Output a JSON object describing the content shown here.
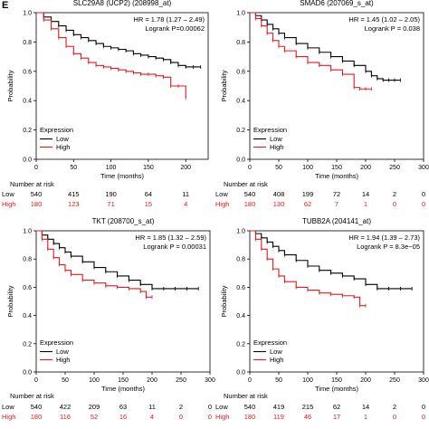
{
  "figure": {
    "panel_letter": "E",
    "number_at_risk_label": "Number at risk",
    "group_labels": [
      "Low",
      "High"
    ]
  },
  "chart_data": [
    {
      "type": "line",
      "title": "SLC29A8 (UCP2) (208998_at)",
      "xlabel": "Time (months)",
      "ylabel": "Probability",
      "xlim": [
        0,
        230
      ],
      "ylim": [
        0,
        1
      ],
      "xticks": [
        0,
        50,
        100,
        150,
        200
      ],
      "yticks": [
        0.0,
        0.2,
        0.4,
        0.6,
        0.8,
        1.0
      ],
      "hr_text": "HR = 1.78 (1.27 – 2.49)",
      "logrank_text": "Logrank P=0.00062",
      "legend": {
        "title": "Expression",
        "entries": [
          "Low",
          "High"
        ],
        "placement": "bottom-left"
      },
      "series": [
        {
          "name": "Low",
          "color": "#000000",
          "x": [
            0,
            10,
            20,
            30,
            40,
            50,
            60,
            70,
            80,
            90,
            100,
            110,
            120,
            130,
            140,
            150,
            160,
            170,
            180,
            190,
            200,
            210,
            220
          ],
          "y": [
            1.0,
            0.97,
            0.94,
            0.91,
            0.88,
            0.85,
            0.83,
            0.81,
            0.79,
            0.77,
            0.76,
            0.75,
            0.74,
            0.72,
            0.71,
            0.7,
            0.69,
            0.68,
            0.66,
            0.64,
            0.63,
            0.63,
            0.63
          ]
        },
        {
          "name": "High",
          "color": "#e41a1c",
          "x": [
            0,
            10,
            20,
            30,
            40,
            50,
            60,
            70,
            80,
            90,
            100,
            110,
            120,
            130,
            140,
            150,
            160,
            170,
            180,
            190,
            200
          ],
          "y": [
            1.0,
            0.95,
            0.89,
            0.83,
            0.77,
            0.72,
            0.69,
            0.66,
            0.64,
            0.63,
            0.62,
            0.61,
            0.6,
            0.59,
            0.58,
            0.58,
            0.57,
            0.56,
            0.5,
            0.5,
            0.42
          ]
        }
      ],
      "risk_table": {
        "times": [
          0,
          50,
          100,
          150,
          200
        ],
        "Low": [
          "540",
          "415",
          "190",
          "64",
          "11"
        ],
        "High": [
          "180",
          "123",
          "71",
          "15",
          "4"
        ]
      }
    },
    {
      "type": "line",
      "title": "SMAD6 (207069_s_at)",
      "xlabel": "Time (months)",
      "ylabel": "Probability",
      "xlim": [
        0,
        300
      ],
      "ylim": [
        0,
        1
      ],
      "xticks": [
        0,
        50,
        100,
        150,
        200,
        250,
        300
      ],
      "yticks": [
        0.0,
        0.2,
        0.4,
        0.6,
        0.8,
        1.0
      ],
      "hr_text": "HR = 1.45 (1.02 – 2.05)",
      "logrank_text": "Logrank P = 0.038",
      "legend": {
        "title": "Expression",
        "entries": [
          "Low",
          "High"
        ],
        "placement": "bottom-left"
      },
      "series": [
        {
          "name": "Low",
          "color": "#000000",
          "x": [
            0,
            10,
            20,
            30,
            40,
            50,
            60,
            80,
            100,
            120,
            140,
            160,
            180,
            200,
            210,
            220,
            230,
            240,
            250,
            260
          ],
          "y": [
            1.0,
            0.98,
            0.95,
            0.92,
            0.89,
            0.86,
            0.83,
            0.79,
            0.76,
            0.73,
            0.7,
            0.67,
            0.64,
            0.6,
            0.57,
            0.55,
            0.54,
            0.54,
            0.54,
            0.54
          ]
        },
        {
          "name": "High",
          "color": "#e41a1c",
          "x": [
            0,
            10,
            20,
            30,
            40,
            50,
            60,
            80,
            100,
            120,
            140,
            160,
            180,
            190,
            200,
            210
          ],
          "y": [
            1.0,
            0.96,
            0.91,
            0.86,
            0.81,
            0.77,
            0.74,
            0.7,
            0.66,
            0.64,
            0.61,
            0.58,
            0.49,
            0.48,
            0.48,
            0.48
          ]
        }
      ],
      "risk_table": {
        "times": [
          0,
          50,
          100,
          150,
          200,
          250,
          300
        ],
        "Low": [
          "540",
          "408",
          "199",
          "72",
          "14",
          "2",
          "0"
        ],
        "High": [
          "180",
          "130",
          "62",
          "7",
          "1",
          "0",
          "0"
        ]
      }
    },
    {
      "type": "line",
      "title": "TKT (208700_s_at)",
      "xlabel": "Time (months)",
      "ylabel": "Probability",
      "xlim": [
        0,
        300
      ],
      "ylim": [
        0,
        1
      ],
      "xticks": [
        0,
        50,
        100,
        150,
        200,
        250,
        300
      ],
      "yticks": [
        0.0,
        0.2,
        0.4,
        0.6,
        0.8,
        1.0
      ],
      "hr_text": "HR = 1.85 (1.32 – 2.59)",
      "logrank_text": "Logrank P = 0.00031",
      "legend": {
        "title": "Expression",
        "entries": [
          "Low",
          "High"
        ],
        "placement": "bottom-left"
      },
      "series": [
        {
          "name": "Low",
          "color": "#000000",
          "x": [
            0,
            10,
            20,
            30,
            40,
            50,
            60,
            80,
            100,
            120,
            140,
            160,
            180,
            200,
            220,
            240,
            260,
            280
          ],
          "y": [
            1.0,
            0.97,
            0.94,
            0.91,
            0.88,
            0.85,
            0.82,
            0.78,
            0.74,
            0.71,
            0.68,
            0.65,
            0.62,
            0.59,
            0.59,
            0.59,
            0.59,
            0.59
          ]
        },
        {
          "name": "High",
          "color": "#e41a1c",
          "x": [
            0,
            10,
            20,
            30,
            40,
            50,
            60,
            80,
            100,
            120,
            140,
            160,
            180,
            190,
            200
          ],
          "y": [
            1.0,
            0.94,
            0.87,
            0.81,
            0.76,
            0.72,
            0.69,
            0.65,
            0.63,
            0.61,
            0.6,
            0.59,
            0.57,
            0.53,
            0.53
          ]
        }
      ],
      "risk_table": {
        "times": [
          0,
          50,
          100,
          150,
          200,
          250,
          300
        ],
        "Low": [
          "540",
          "422",
          "209",
          "63",
          "11",
          "2",
          "0"
        ],
        "High": [
          "180",
          "116",
          "52",
          "16",
          "4",
          "0",
          "0"
        ]
      }
    },
    {
      "type": "line",
      "title": "TUBB2A (204141_at)",
      "xlabel": "Time (months)",
      "ylabel": "Probability",
      "xlim": [
        0,
        300
      ],
      "ylim": [
        0,
        1
      ],
      "xticks": [
        0,
        50,
        100,
        150,
        200,
        250,
        300
      ],
      "yticks": [
        0.0,
        0.2,
        0.4,
        0.6,
        0.8,
        1.0
      ],
      "hr_text": "HR = 1.94 (1.39 – 2.73)",
      "logrank_text": "Logrank P = 8.3e−05",
      "legend": {
        "title": "Expression",
        "entries": [
          "Low",
          "High"
        ],
        "placement": "bottom-left"
      },
      "series": [
        {
          "name": "Low",
          "color": "#000000",
          "x": [
            0,
            10,
            20,
            30,
            40,
            50,
            60,
            80,
            100,
            120,
            140,
            160,
            180,
            200,
            220,
            240,
            260,
            280
          ],
          "y": [
            1.0,
            0.98,
            0.95,
            0.92,
            0.89,
            0.86,
            0.83,
            0.79,
            0.75,
            0.72,
            0.7,
            0.68,
            0.66,
            0.62,
            0.59,
            0.59,
            0.59,
            0.59
          ]
        },
        {
          "name": "High",
          "color": "#e41a1c",
          "x": [
            0,
            10,
            20,
            30,
            40,
            50,
            60,
            80,
            100,
            120,
            140,
            160,
            180,
            190,
            200
          ],
          "y": [
            1.0,
            0.94,
            0.87,
            0.8,
            0.73,
            0.68,
            0.64,
            0.6,
            0.58,
            0.56,
            0.55,
            0.54,
            0.53,
            0.47,
            0.47
          ]
        }
      ],
      "risk_table": {
        "times": [
          0,
          50,
          100,
          150,
          200,
          250,
          300
        ],
        "Low": [
          "540",
          "419",
          "215",
          "62",
          "14",
          "2",
          "0"
        ],
        "High": [
          "180",
          "119",
          "46",
          "17",
          "1",
          "0",
          "0"
        ]
      }
    }
  ]
}
